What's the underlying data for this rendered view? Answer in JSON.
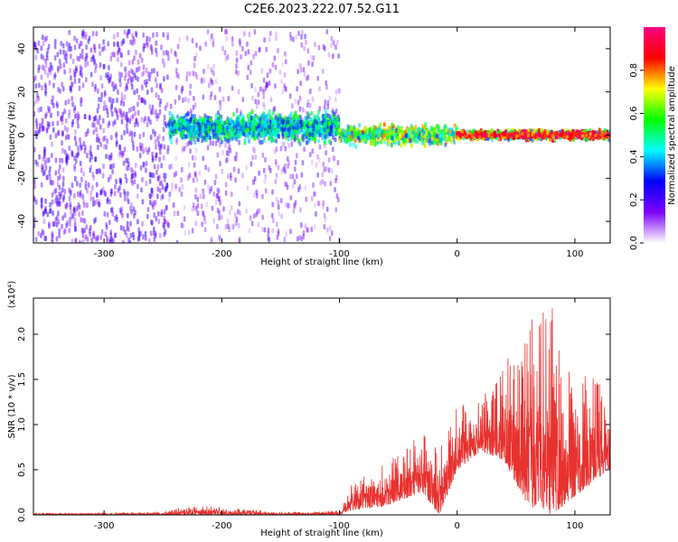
{
  "title": "C2E6.2023.222.07.52.G11",
  "chart_data": [
    {
      "type": "heatmap",
      "xlabel": "Height of straight line (km)",
      "ylabel": "Frequency (Hz)",
      "xlim": [
        -360,
        130
      ],
      "ylim": [
        -50,
        50
      ],
      "xticks": [
        -300,
        -200,
        -100,
        0,
        100
      ],
      "yticks": [
        -40,
        -20,
        0,
        20,
        40
      ],
      "grid": false,
      "regions": [
        {
          "x": [
            -360,
            -245
          ],
          "y": [
            -50,
            48
          ],
          "amplitude": [
            0.1,
            0.25
          ],
          "pattern": "dense noise"
        },
        {
          "x": [
            -245,
            -100
          ],
          "y": [
            -50,
            48
          ],
          "amplitude": [
            0.05,
            0.2
          ],
          "pattern": "sparse noise"
        },
        {
          "x": [
            -245,
            -100
          ],
          "y": [
            -5,
            12
          ],
          "amplitude": [
            0.25,
            0.6
          ],
          "pattern": "signal band"
        },
        {
          "x": [
            -100,
            0
          ],
          "y": [
            -6,
            6
          ],
          "amplitude": [
            0.3,
            0.8
          ],
          "pattern": "signal band"
        },
        {
          "x": [
            0,
            130
          ],
          "y": [
            -3,
            3
          ],
          "amplitude": [
            0.3,
            1.0
          ],
          "pattern": "narrow line near 0 Hz"
        }
      ],
      "colorbar": {
        "label": "Normalized spectral amplitude",
        "range": [
          0.0,
          1.0
        ],
        "ticks": [
          "0.0",
          "0.2",
          "0.4",
          "0.6",
          "0.8"
        ],
        "colormap": [
          "#ffffff",
          "#7f00ff",
          "#0000ff",
          "#00ffff",
          "#00ff00",
          "#ffff00",
          "#ff0000",
          "#ff0080"
        ]
      }
    },
    {
      "type": "line",
      "xlabel": "Height of straight line (km)",
      "ylabel": "SNR (10 * v/v)",
      "multiplier": "(x10⁴)",
      "xlim": [
        -360,
        130
      ],
      "ylim": [
        0,
        2.4
      ],
      "xticks": [
        -300,
        -200,
        -100,
        0,
        100
      ],
      "yticks": [
        "0.0",
        "0.5",
        "1.0",
        "1.5",
        "2.0"
      ],
      "grid": false,
      "series": [
        {
          "color": "#e8322f",
          "envelope": [
            {
              "x": -360,
              "low": 0.0,
              "high": 0.02
            },
            {
              "x": -250,
              "low": 0.0,
              "high": 0.03
            },
            {
              "x": -230,
              "low": 0.0,
              "high": 0.12
            },
            {
              "x": -210,
              "low": 0.0,
              "high": 0.1
            },
            {
              "x": -150,
              "low": 0.0,
              "high": 0.03
            },
            {
              "x": -100,
              "low": 0.0,
              "high": 0.05
            },
            {
              "x": -90,
              "low": 0.05,
              "high": 0.4
            },
            {
              "x": -60,
              "low": 0.1,
              "high": 0.6
            },
            {
              "x": -30,
              "low": 0.25,
              "high": 0.9
            },
            {
              "x": -15,
              "low": 0.0,
              "high": 0.8
            },
            {
              "x": 0,
              "low": 0.5,
              "high": 1.2
            },
            {
              "x": 20,
              "low": 0.7,
              "high": 1.3
            },
            {
              "x": 40,
              "low": 0.6,
              "high": 1.7
            },
            {
              "x": 60,
              "low": 0.1,
              "high": 2.2
            },
            {
              "x": 80,
              "low": 0.0,
              "high": 2.4
            },
            {
              "x": 100,
              "low": 0.2,
              "high": 1.8
            },
            {
              "x": 130,
              "low": 0.5,
              "high": 1.4
            }
          ]
        }
      ]
    }
  ]
}
